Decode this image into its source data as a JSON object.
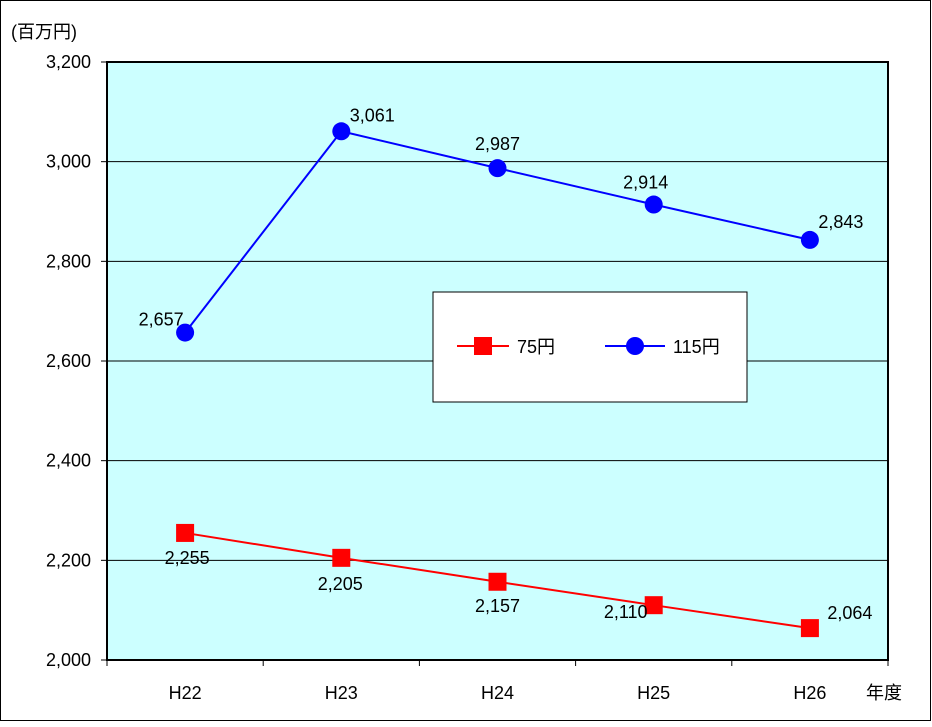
{
  "chart_data": {
    "type": "line",
    "yunit": "(百万円)",
    "xunit": "年度",
    "categories": [
      "H22",
      "H23",
      "H24",
      "H25",
      "H26"
    ],
    "ylim": [
      2000,
      3200
    ],
    "yticks": [
      2000,
      2200,
      2400,
      2600,
      2800,
      3000,
      3200
    ],
    "ytick_labels": [
      "2,000",
      "2,200",
      "2,400",
      "2,600",
      "2,800",
      "3,000",
      "3,200"
    ],
    "grid": true,
    "legend_position": "center-right",
    "plot_background": "#CCFFFF",
    "series": [
      {
        "name": "75円",
        "color": "#FF0000",
        "marker": "square",
        "values": [
          2255,
          2205,
          2157,
          2110,
          2064
        ],
        "labels": [
          "2,255",
          "2,205",
          "2,157",
          "2,110",
          "2,064"
        ]
      },
      {
        "name": "115円",
        "color": "#0000FF",
        "marker": "circle",
        "values": [
          2657,
          3061,
          2987,
          2914,
          2843
        ],
        "labels": [
          "2,657",
          "3,061",
          "2,987",
          "2,914",
          "2,843"
        ]
      }
    ]
  }
}
